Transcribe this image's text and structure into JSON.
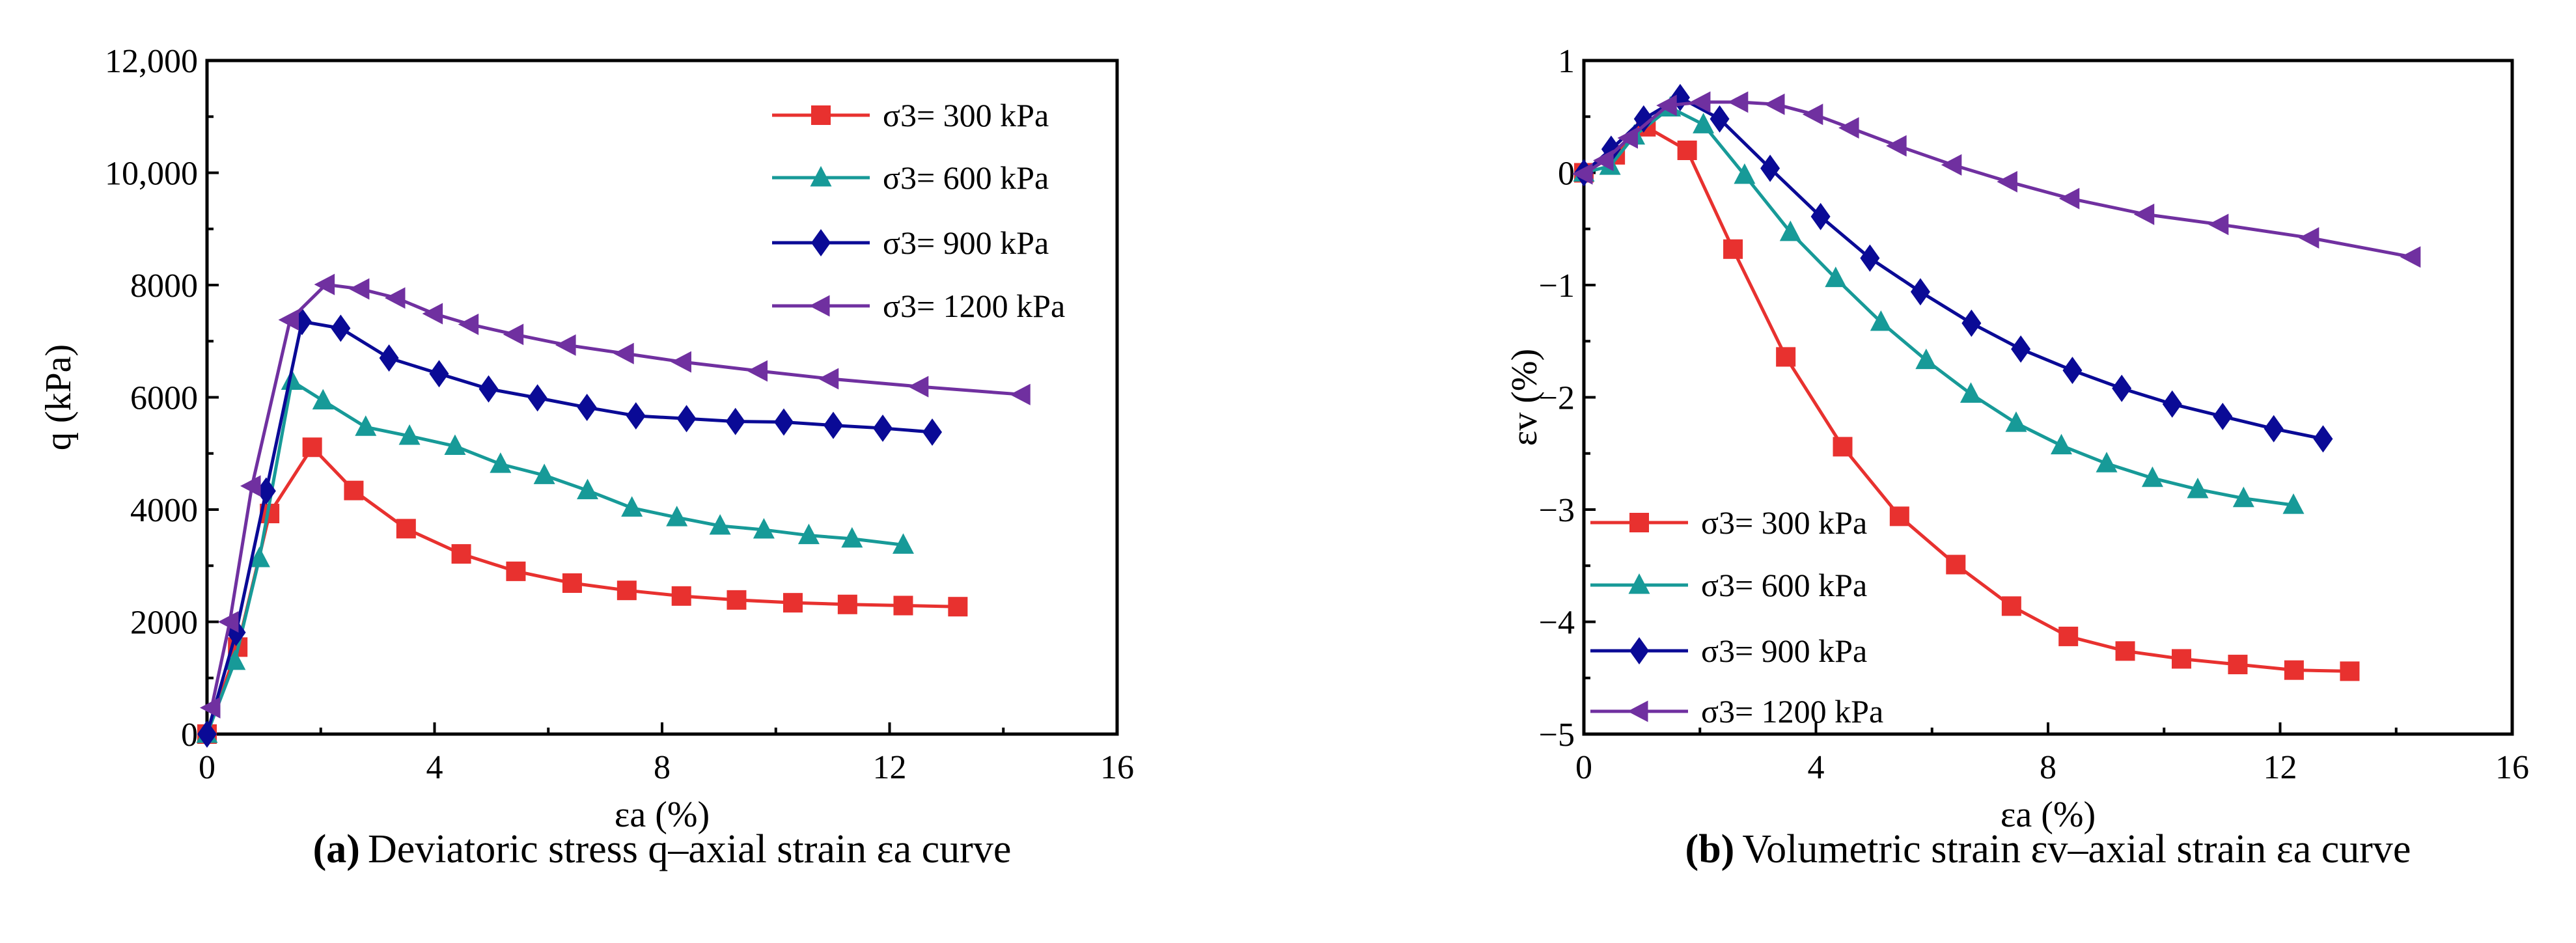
{
  "chart_data": [
    {
      "type": "line",
      "caption_label": "(a)",
      "caption": "Deviatoric stress q–axial strain εa curve",
      "xlabel": "εa (%)",
      "ylabel": "q (kPa)",
      "xlim": [
        0,
        16
      ],
      "ylim": [
        0,
        12000
      ],
      "xticks": [
        0,
        4,
        8,
        12,
        16
      ],
      "yticks": [
        0,
        2000,
        4000,
        6000,
        8000,
        10000,
        12000
      ],
      "ytick_labels": [
        "0",
        "2000",
        "4000",
        "6000",
        "8000",
        "10,000",
        "12,000"
      ],
      "legend_position": "top-right",
      "series": [
        {
          "name": "σ3= 300 kPa",
          "color": "#e8312f",
          "marker": "square",
          "x": [
            0,
            0.54,
            1.1,
            1.85,
            2.58,
            3.5,
            4.47,
            5.43,
            6.42,
            7.38,
            8.34,
            9.31,
            10.3,
            11.26,
            12.24,
            13.2
          ],
          "y": [
            0,
            1550,
            3930,
            5110,
            4340,
            3660,
            3210,
            2900,
            2690,
            2560,
            2460,
            2390,
            2340,
            2310,
            2290,
            2270
          ]
        },
        {
          "name": "σ3= 600 kPa",
          "color": "#179a98",
          "marker": "triangle-up",
          "x": [
            0,
            0.49,
            0.92,
            1.49,
            2.04,
            2.79,
            3.56,
            4.36,
            5.16,
            5.93,
            6.69,
            7.47,
            8.26,
            9.02,
            9.79,
            10.58,
            11.34,
            12.24
          ],
          "y": [
            0,
            1300,
            3130,
            6290,
            5940,
            5470,
            5310,
            5130,
            4810,
            4610,
            4340,
            4030,
            3860,
            3710,
            3640,
            3540,
            3480,
            3370
          ]
        },
        {
          "name": "σ3= 900 kPa",
          "color": "#0a0a96",
          "marker": "diamond",
          "x": [
            0,
            0.51,
            1.04,
            1.67,
            2.35,
            3.2,
            4.08,
            4.95,
            5.81,
            6.68,
            7.54,
            8.43,
            9.29,
            10.14,
            11.01,
            11.88,
            12.75
          ],
          "y": [
            0,
            1810,
            4330,
            7350,
            7230,
            6700,
            6420,
            6150,
            5990,
            5820,
            5670,
            5620,
            5570,
            5560,
            5500,
            5450,
            5380
          ]
        },
        {
          "name": "σ3= 1200 kPa",
          "color": "#7030a0",
          "marker": "triangle-left",
          "x": [
            0.08,
            0.4,
            0.79,
            1.46,
            2.09,
            2.7,
            3.33,
            3.99,
            4.62,
            5.41,
            6.33,
            7.35,
            8.36,
            9.7,
            10.95,
            12.53,
            14.32
          ],
          "y": [
            470,
            2000,
            4420,
            7380,
            8010,
            7930,
            7770,
            7490,
            7300,
            7120,
            6930,
            6780,
            6630,
            6470,
            6330,
            6190,
            6050
          ]
        }
      ]
    },
    {
      "type": "line",
      "caption_label": "(b)",
      "caption": "Volumetric strain εv–axial strain εa curve",
      "xlabel": "εa (%)",
      "ylabel": "εv (%)",
      "xlim": [
        0,
        16
      ],
      "ylim": [
        -5,
        1
      ],
      "xticks": [
        0,
        4,
        8,
        12,
        16
      ],
      "yticks": [
        -5,
        -4,
        -3,
        -2,
        -1,
        0,
        1
      ],
      "ytick_labels": [
        "−5",
        "−4",
        "−3",
        "−2",
        "−1",
        "0",
        "1"
      ],
      "legend_position": "bottom-left",
      "series": [
        {
          "name": "σ3= 300 kPa",
          "color": "#e8312f",
          "marker": "square",
          "x": [
            0,
            0.54,
            1.07,
            1.78,
            2.57,
            3.48,
            4.46,
            5.44,
            6.41,
            7.37,
            8.35,
            9.33,
            10.3,
            11.27,
            12.24,
            13.2
          ],
          "y": [
            0,
            0.16,
            0.41,
            0.2,
            -0.68,
            -1.64,
            -2.44,
            -3.06,
            -3.49,
            -3.86,
            -4.13,
            -4.26,
            -4.33,
            -4.38,
            -4.43,
            -4.44
          ]
        },
        {
          "name": "σ3= 600 kPa",
          "color": "#179a98",
          "marker": "triangle-up",
          "x": [
            0,
            0.45,
            0.87,
            1.49,
            2.06,
            2.77,
            3.56,
            4.34,
            5.12,
            5.9,
            6.67,
            7.45,
            8.23,
            9.01,
            9.8,
            10.58,
            11.37,
            12.23
          ],
          "y": [
            0,
            0.06,
            0.33,
            0.58,
            0.43,
            -0.02,
            -0.53,
            -0.94,
            -1.33,
            -1.67,
            -1.97,
            -2.23,
            -2.43,
            -2.59,
            -2.72,
            -2.82,
            -2.9,
            -2.96
          ]
        },
        {
          "name": "σ3= 900 kPa",
          "color": "#0a0a96",
          "marker": "diamond",
          "x": [
            0,
            0.47,
            1.03,
            1.66,
            2.34,
            3.21,
            4.08,
            4.93,
            5.8,
            6.68,
            7.53,
            8.42,
            9.27,
            10.14,
            11.01,
            11.89,
            12.74
          ],
          "y": [
            0,
            0.21,
            0.48,
            0.67,
            0.48,
            0.04,
            -0.39,
            -0.76,
            -1.06,
            -1.34,
            -1.57,
            -1.76,
            -1.92,
            -2.06,
            -2.17,
            -2.28,
            -2.37
          ]
        },
        {
          "name": "σ3= 1200 kPa",
          "color": "#7030a0",
          "marker": "triangle-left",
          "x": [
            0,
            0.36,
            0.78,
            1.45,
            2.03,
            2.68,
            3.31,
            3.97,
            4.59,
            5.41,
            6.36,
            7.32,
            8.39,
            9.68,
            10.96,
            12.52,
            14.27
          ],
          "y": [
            -0.01,
            0.11,
            0.31,
            0.6,
            0.63,
            0.63,
            0.61,
            0.52,
            0.4,
            0.24,
            0.07,
            -0.08,
            -0.23,
            -0.37,
            -0.46,
            -0.58,
            -0.75
          ]
        }
      ]
    }
  ]
}
